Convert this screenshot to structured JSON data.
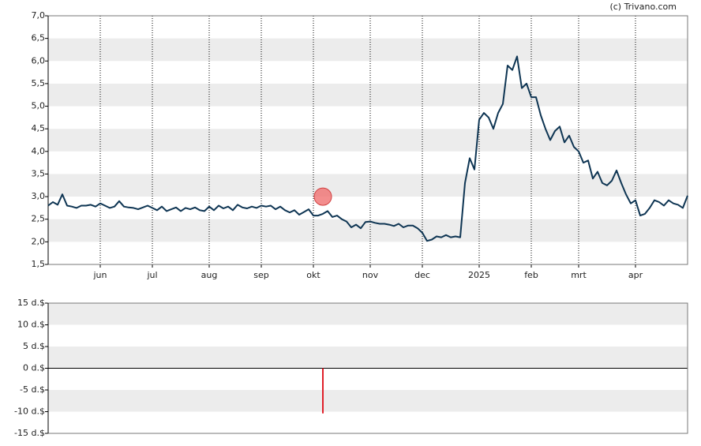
{
  "credit": "(c) Trivano.com",
  "chart_data": [
    {
      "type": "line",
      "bands": "alternate",
      "grid": "dotted",
      "ylim": [
        1.5,
        7.0
      ],
      "yticks": [
        {
          "value": 1.5,
          "label": "1,5"
        },
        {
          "value": 2.0,
          "label": "2,0"
        },
        {
          "value": 2.5,
          "label": "2,5"
        },
        {
          "value": 3.0,
          "label": "3,0"
        },
        {
          "value": 3.5,
          "label": "3,5"
        },
        {
          "value": 4.0,
          "label": "4,0"
        },
        {
          "value": 4.5,
          "label": "4,5"
        },
        {
          "value": 5.0,
          "label": "5,0"
        },
        {
          "value": 5.5,
          "label": "5,5"
        },
        {
          "value": 6.0,
          "label": "6,0"
        },
        {
          "value": 6.5,
          "label": "6,5"
        },
        {
          "value": 7.0,
          "label": "7,0"
        }
      ],
      "categories": [
        null,
        null,
        null,
        null,
        null,
        null,
        null,
        null,
        null,
        null,
        null,
        "jun",
        null,
        null,
        null,
        null,
        null,
        null,
        null,
        null,
        null,
        null,
        "jul",
        null,
        null,
        null,
        null,
        null,
        null,
        null,
        null,
        null,
        null,
        null,
        "aug",
        null,
        null,
        null,
        null,
        null,
        null,
        null,
        null,
        null,
        null,
        "sep",
        null,
        null,
        null,
        null,
        null,
        null,
        null,
        null,
        null,
        null,
        "okt",
        null,
        null,
        null,
        null,
        null,
        null,
        null,
        null,
        null,
        null,
        null,
        "nov",
        null,
        null,
        null,
        null,
        null,
        null,
        null,
        null,
        null,
        null,
        "dec",
        null,
        null,
        null,
        null,
        null,
        null,
        null,
        null,
        null,
        null,
        null,
        "2025",
        null,
        null,
        null,
        null,
        null,
        null,
        null,
        null,
        null,
        null,
        "feb",
        null,
        null,
        null,
        null,
        null,
        null,
        null,
        null,
        null,
        "mrt",
        null,
        null,
        null,
        null,
        null,
        null,
        null,
        null,
        null,
        null,
        null,
        "apr",
        null,
        null,
        null,
        null,
        null,
        null,
        null,
        null,
        null,
        null,
        null
      ],
      "series": [
        {
          "color": "#0e3553",
          "style": "line",
          "values": [
            2.8,
            2.88,
            2.82,
            3.05,
            2.8,
            2.78,
            2.75,
            2.8,
            2.8,
            2.82,
            2.78,
            2.85,
            2.8,
            2.75,
            2.78,
            2.9,
            2.78,
            2.76,
            2.75,
            2.72,
            2.76,
            2.8,
            2.75,
            2.7,
            2.78,
            2.68,
            2.72,
            2.76,
            2.68,
            2.75,
            2.72,
            2.76,
            2.7,
            2.68,
            2.78,
            2.7,
            2.8,
            2.74,
            2.78,
            2.7,
            2.82,
            2.76,
            2.74,
            2.78,
            2.75,
            2.8,
            2.78,
            2.8,
            2.72,
            2.78,
            2.7,
            2.65,
            2.7,
            2.6,
            2.66,
            2.72,
            2.58,
            2.58,
            2.62,
            2.68,
            2.55,
            2.58,
            2.5,
            2.45,
            2.32,
            2.38,
            2.3,
            2.44,
            2.45,
            2.42,
            2.4,
            2.4,
            2.38,
            2.35,
            2.4,
            2.32,
            2.36,
            2.36,
            2.3,
            2.2,
            2.02,
            2.05,
            2.12,
            2.1,
            2.15,
            2.1,
            2.12,
            2.1,
            3.3,
            3.85,
            3.6,
            4.7,
            4.85,
            4.75,
            4.5,
            4.85,
            5.05,
            5.9,
            5.8,
            6.1,
            5.4,
            5.5,
            5.2,
            5.2,
            4.8,
            4.5,
            4.25,
            4.45,
            4.55,
            4.2,
            4.35,
            4.1,
            4.0,
            3.75,
            3.8,
            3.4,
            3.55,
            3.3,
            3.25,
            3.35,
            3.58,
            3.3,
            3.05,
            2.85,
            2.92,
            2.58,
            2.62,
            2.75,
            2.92,
            2.88,
            2.8,
            2.92,
            2.85,
            2.82,
            2.75,
            3.02
          ]
        },
        {
          "color": "#f07070",
          "style": "dot",
          "values": [
            null,
            null,
            null,
            null,
            null,
            null,
            null,
            null,
            null,
            null,
            null,
            null,
            null,
            null,
            null,
            null,
            null,
            null,
            null,
            null,
            null,
            null,
            null,
            null,
            null,
            null,
            null,
            null,
            null,
            null,
            null,
            null,
            null,
            null,
            null,
            null,
            null,
            null,
            null,
            null,
            null,
            null,
            null,
            null,
            null,
            null,
            null,
            null,
            null,
            null,
            null,
            null,
            null,
            null,
            null,
            null,
            null,
            null,
            3.0,
            null,
            null,
            null,
            null,
            null,
            null,
            null,
            null,
            null,
            null,
            null,
            null,
            null,
            null,
            null,
            null,
            null,
            null,
            null,
            null,
            null,
            null,
            null,
            null,
            null,
            null,
            null,
            null,
            null,
            null,
            null,
            null,
            null,
            null,
            null,
            null,
            null,
            null,
            null,
            null,
            null,
            null,
            null,
            null,
            null,
            null,
            null,
            null,
            null,
            null,
            null,
            null,
            null,
            null,
            null,
            null,
            null,
            null,
            null,
            null,
            null,
            null,
            null,
            null,
            null,
            null,
            null,
            null,
            null,
            null,
            null,
            null,
            null,
            null,
            null,
            null,
            null
          ]
        }
      ]
    },
    {
      "type": "bar",
      "bands": "alternate",
      "color": "#e0202a",
      "ylim": [
        -15,
        15
      ],
      "yticks": [
        {
          "value": -15,
          "label": "-15 d.$"
        },
        {
          "value": -10,
          "label": "-10 d.$"
        },
        {
          "value": -5,
          "label": "-5 d.$"
        },
        {
          "value": 0,
          "label": "0 d.$"
        },
        {
          "value": 5,
          "label": "5 d.$"
        },
        {
          "value": 10,
          "label": "10 d.$"
        },
        {
          "value": 15,
          "label": "15 d.$"
        }
      ],
      "values": [
        null,
        null,
        null,
        null,
        null,
        null,
        null,
        null,
        null,
        null,
        null,
        null,
        null,
        null,
        null,
        null,
        null,
        null,
        null,
        null,
        null,
        null,
        null,
        null,
        null,
        null,
        null,
        null,
        null,
        null,
        null,
        null,
        null,
        null,
        null,
        null,
        null,
        null,
        null,
        null,
        null,
        null,
        null,
        null,
        null,
        null,
        null,
        null,
        null,
        null,
        null,
        null,
        null,
        null,
        null,
        null,
        null,
        null,
        -10.4,
        null,
        null,
        null,
        null,
        null,
        null,
        null,
        null,
        null,
        null,
        null,
        null,
        null,
        null,
        null,
        null,
        null,
        null,
        null,
        null,
        null,
        null,
        null,
        null,
        null,
        null,
        null,
        null,
        null,
        null,
        null,
        null,
        null,
        null,
        null,
        null,
        null,
        null,
        null,
        null,
        null,
        null,
        null,
        null,
        null,
        null,
        null,
        null,
        null,
        null,
        null,
        null,
        null,
        null,
        null,
        null,
        null,
        null,
        null,
        null,
        null,
        null,
        null,
        null,
        null,
        null,
        null,
        null,
        null,
        null,
        null,
        null,
        null,
        null,
        null,
        null,
        null
      ]
    }
  ]
}
